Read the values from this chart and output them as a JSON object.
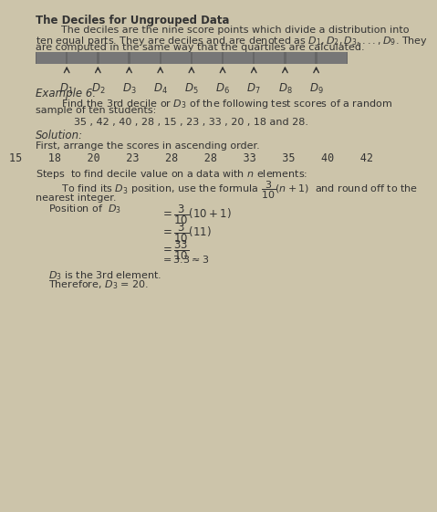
{
  "title": "The Deciles for Ungrouped Data",
  "bg_color": "#ccc4aa",
  "text_color": "#333333",
  "para1_indent": "        The deciles are the nine score points which divide a distribution into",
  "para1_line2": "ten equal parts. They are deciles and are denoted as $D_1, D_2, D_3,..., D_9$. They",
  "para1_line3": "are computed in the same way that the quartiles are calculated.",
  "decile_labels": [
    "$D_1$",
    "$D_2$",
    "$D_3$",
    "$D_4$",
    "$D_5$",
    "$D_6$",
    "$D_7$",
    "$D_8$",
    "$D_9$"
  ],
  "example_label": "Example 6.",
  "example_line1": "        Find the 3rd decile or $D_3$ of the following test scores of a random",
  "example_line2": "sample of ten students:",
  "scores_line": "35 , 42 , 40 , 28 , 15 , 23 , 33 , 20 , 18 and 28.",
  "solution_label": "Solution:",
  "first_step": "First, arrange the scores in ascending order.",
  "sorted_scores": "15    18    20    23    28    28    33    35    40    42",
  "steps_text": "Steps  to find decile value on a data with $n$ elements:",
  "formula_line1": "        To find its $D_3$ position, use the formula $\\dfrac{3}{10}(n+1)$  and round off to the",
  "formula_line2": "nearest integer.",
  "position_label": "    Position of  $D_3$",
  "step1": "$= \\dfrac{3}{10}(10+1)$",
  "step2": "$= \\dfrac{3}{10}(11)$",
  "step3": "$= \\dfrac{33}{10}$",
  "step4": "$= 3.3 \\approx 3$",
  "conclusion1": "    $D_3$ is the 3rd element.",
  "conclusion2": "    Therefore, $D_3$ = 20."
}
